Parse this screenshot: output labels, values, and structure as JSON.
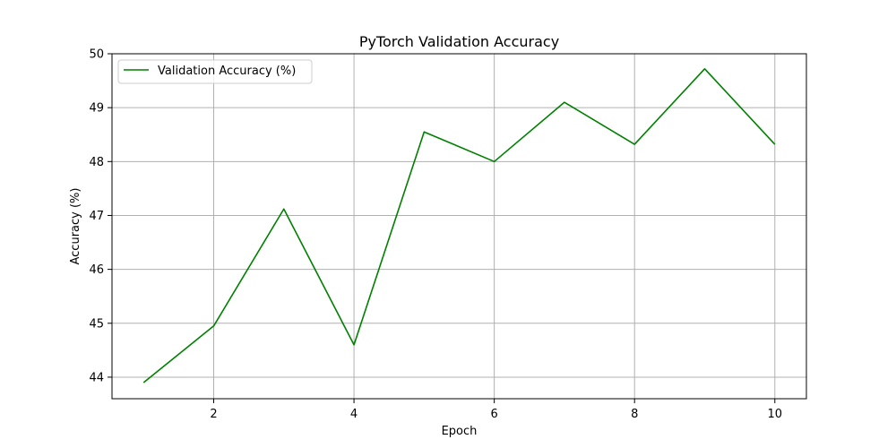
{
  "chart_data": {
    "type": "line",
    "title": "PyTorch Validation Accuracy",
    "xlabel": "Epoch",
    "ylabel": "Accuracy (%)",
    "xlim": [
      0.55,
      10.45
    ],
    "ylim": [
      43.6,
      50.0
    ],
    "x_ticks": [
      2,
      4,
      6,
      8,
      10
    ],
    "y_ticks": [
      44,
      45,
      46,
      47,
      48,
      49,
      50
    ],
    "grid": true,
    "legend_position": "top-left",
    "series": [
      {
        "name": "Validation Accuracy (%)",
        "color": "#008000",
        "x": [
          1,
          2,
          3,
          4,
          5,
          6,
          7,
          8,
          9,
          10
        ],
        "y": [
          43.9,
          44.95,
          47.12,
          44.6,
          48.55,
          48.0,
          49.1,
          48.32,
          49.72,
          48.32
        ]
      }
    ]
  }
}
